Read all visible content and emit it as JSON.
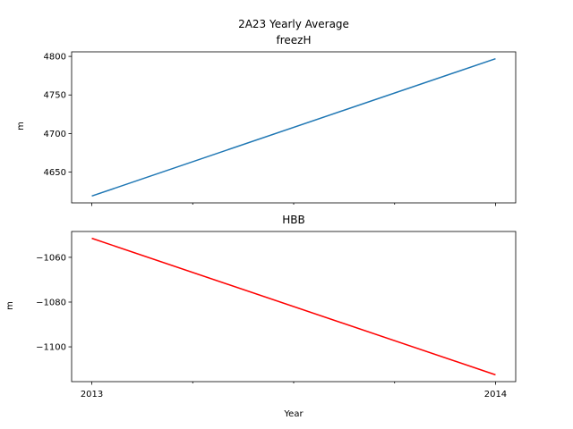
{
  "figure_title": "2A23 Yearly Average",
  "chart_data": [
    {
      "type": "line",
      "title": "freezH",
      "xlabel": "",
      "ylabel": "m",
      "x": [
        2013,
        2014
      ],
      "values": [
        4619,
        4797
      ],
      "color": "#1f77b4",
      "xlim": [
        2012.95,
        2014.05
      ],
      "ylim": [
        4610.1,
        4805.9
      ],
      "yticks": [
        4650,
        4700,
        4750,
        4800
      ],
      "xticks": [
        2013,
        2014
      ],
      "xtick_labels_shown": false,
      "grid": false,
      "legend": "none"
    },
    {
      "type": "line",
      "title": "HBB",
      "xlabel": "Year",
      "ylabel": "m",
      "x": [
        2013,
        2014
      ],
      "values": [
        -1051.5,
        -1112.5
      ],
      "color": "#ff0000",
      "xlim": [
        2012.95,
        2014.05
      ],
      "ylim": [
        -1115.55,
        -1048.45
      ],
      "yticks": [
        -1060,
        -1080,
        -1100
      ],
      "xticks": [
        2013,
        2014
      ],
      "xtick_labels_shown": true,
      "grid": false,
      "legend": "none"
    }
  ]
}
